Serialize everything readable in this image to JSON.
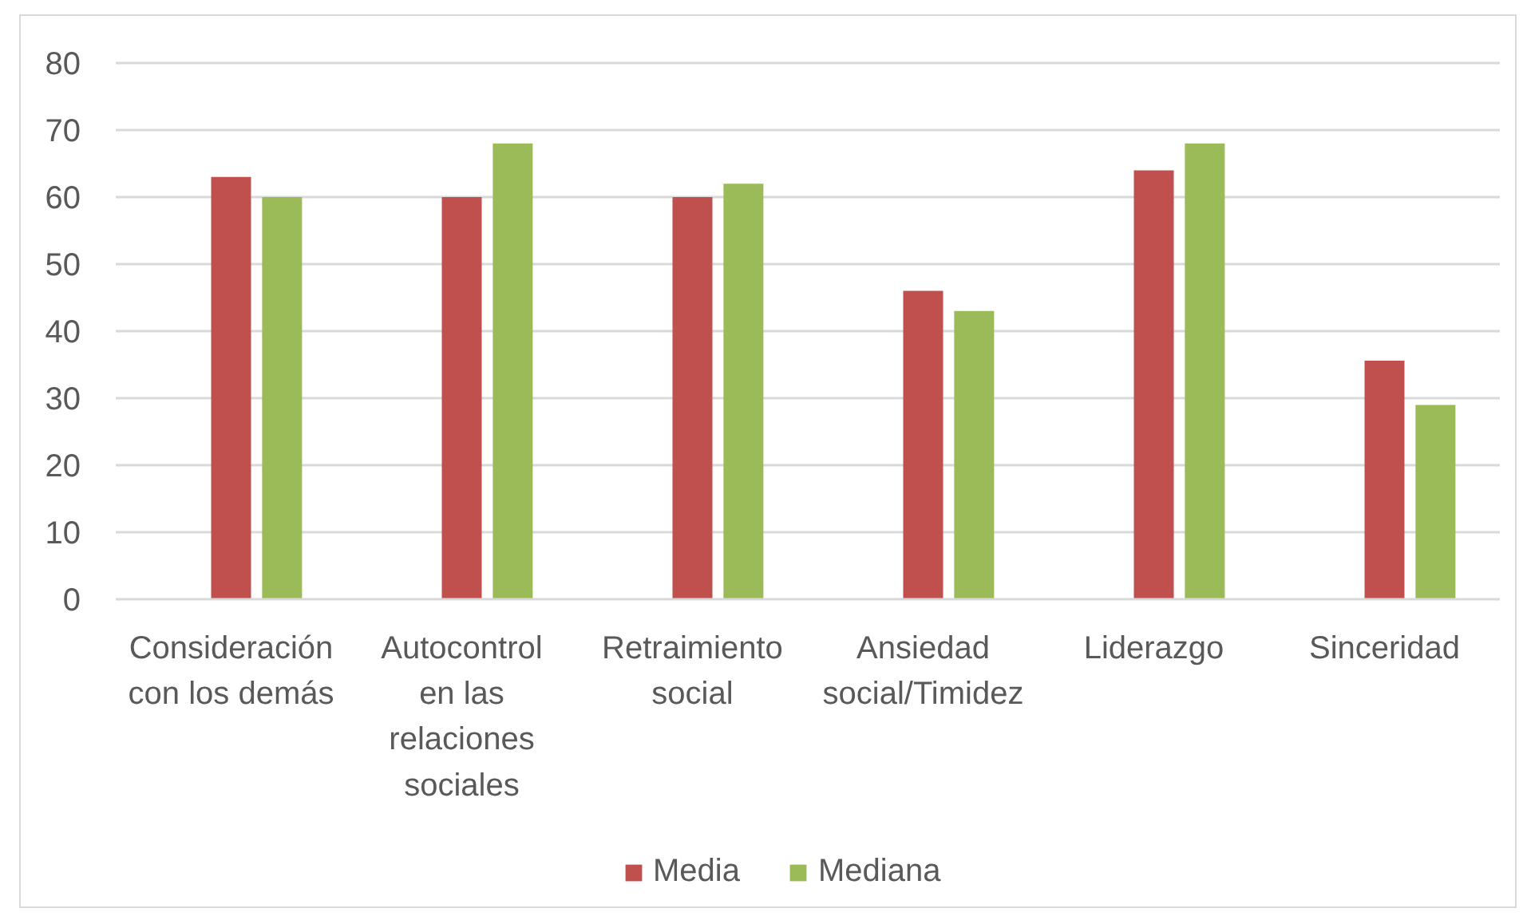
{
  "chart_data": {
    "type": "bar",
    "categories": [
      "Consideración con los demás",
      "Autocontrol en las relaciones sociales",
      "Retraimiento social",
      "Ansiedad social/Timidez",
      "Liderazgo",
      "Sinceridad"
    ],
    "series": [
      {
        "name": "Media",
        "color": "#c0504d",
        "values": [
          63,
          60,
          60,
          46,
          64,
          35.6
        ]
      },
      {
        "name": "Mediana",
        "color": "#9bbb59",
        "values": [
          60,
          68,
          62,
          43,
          68,
          29
        ]
      }
    ],
    "ylim": [
      0,
      80
    ],
    "yticks": [
      0,
      10,
      20,
      30,
      40,
      50,
      60,
      70,
      80
    ],
    "grid": "y",
    "legend": "bottom"
  }
}
